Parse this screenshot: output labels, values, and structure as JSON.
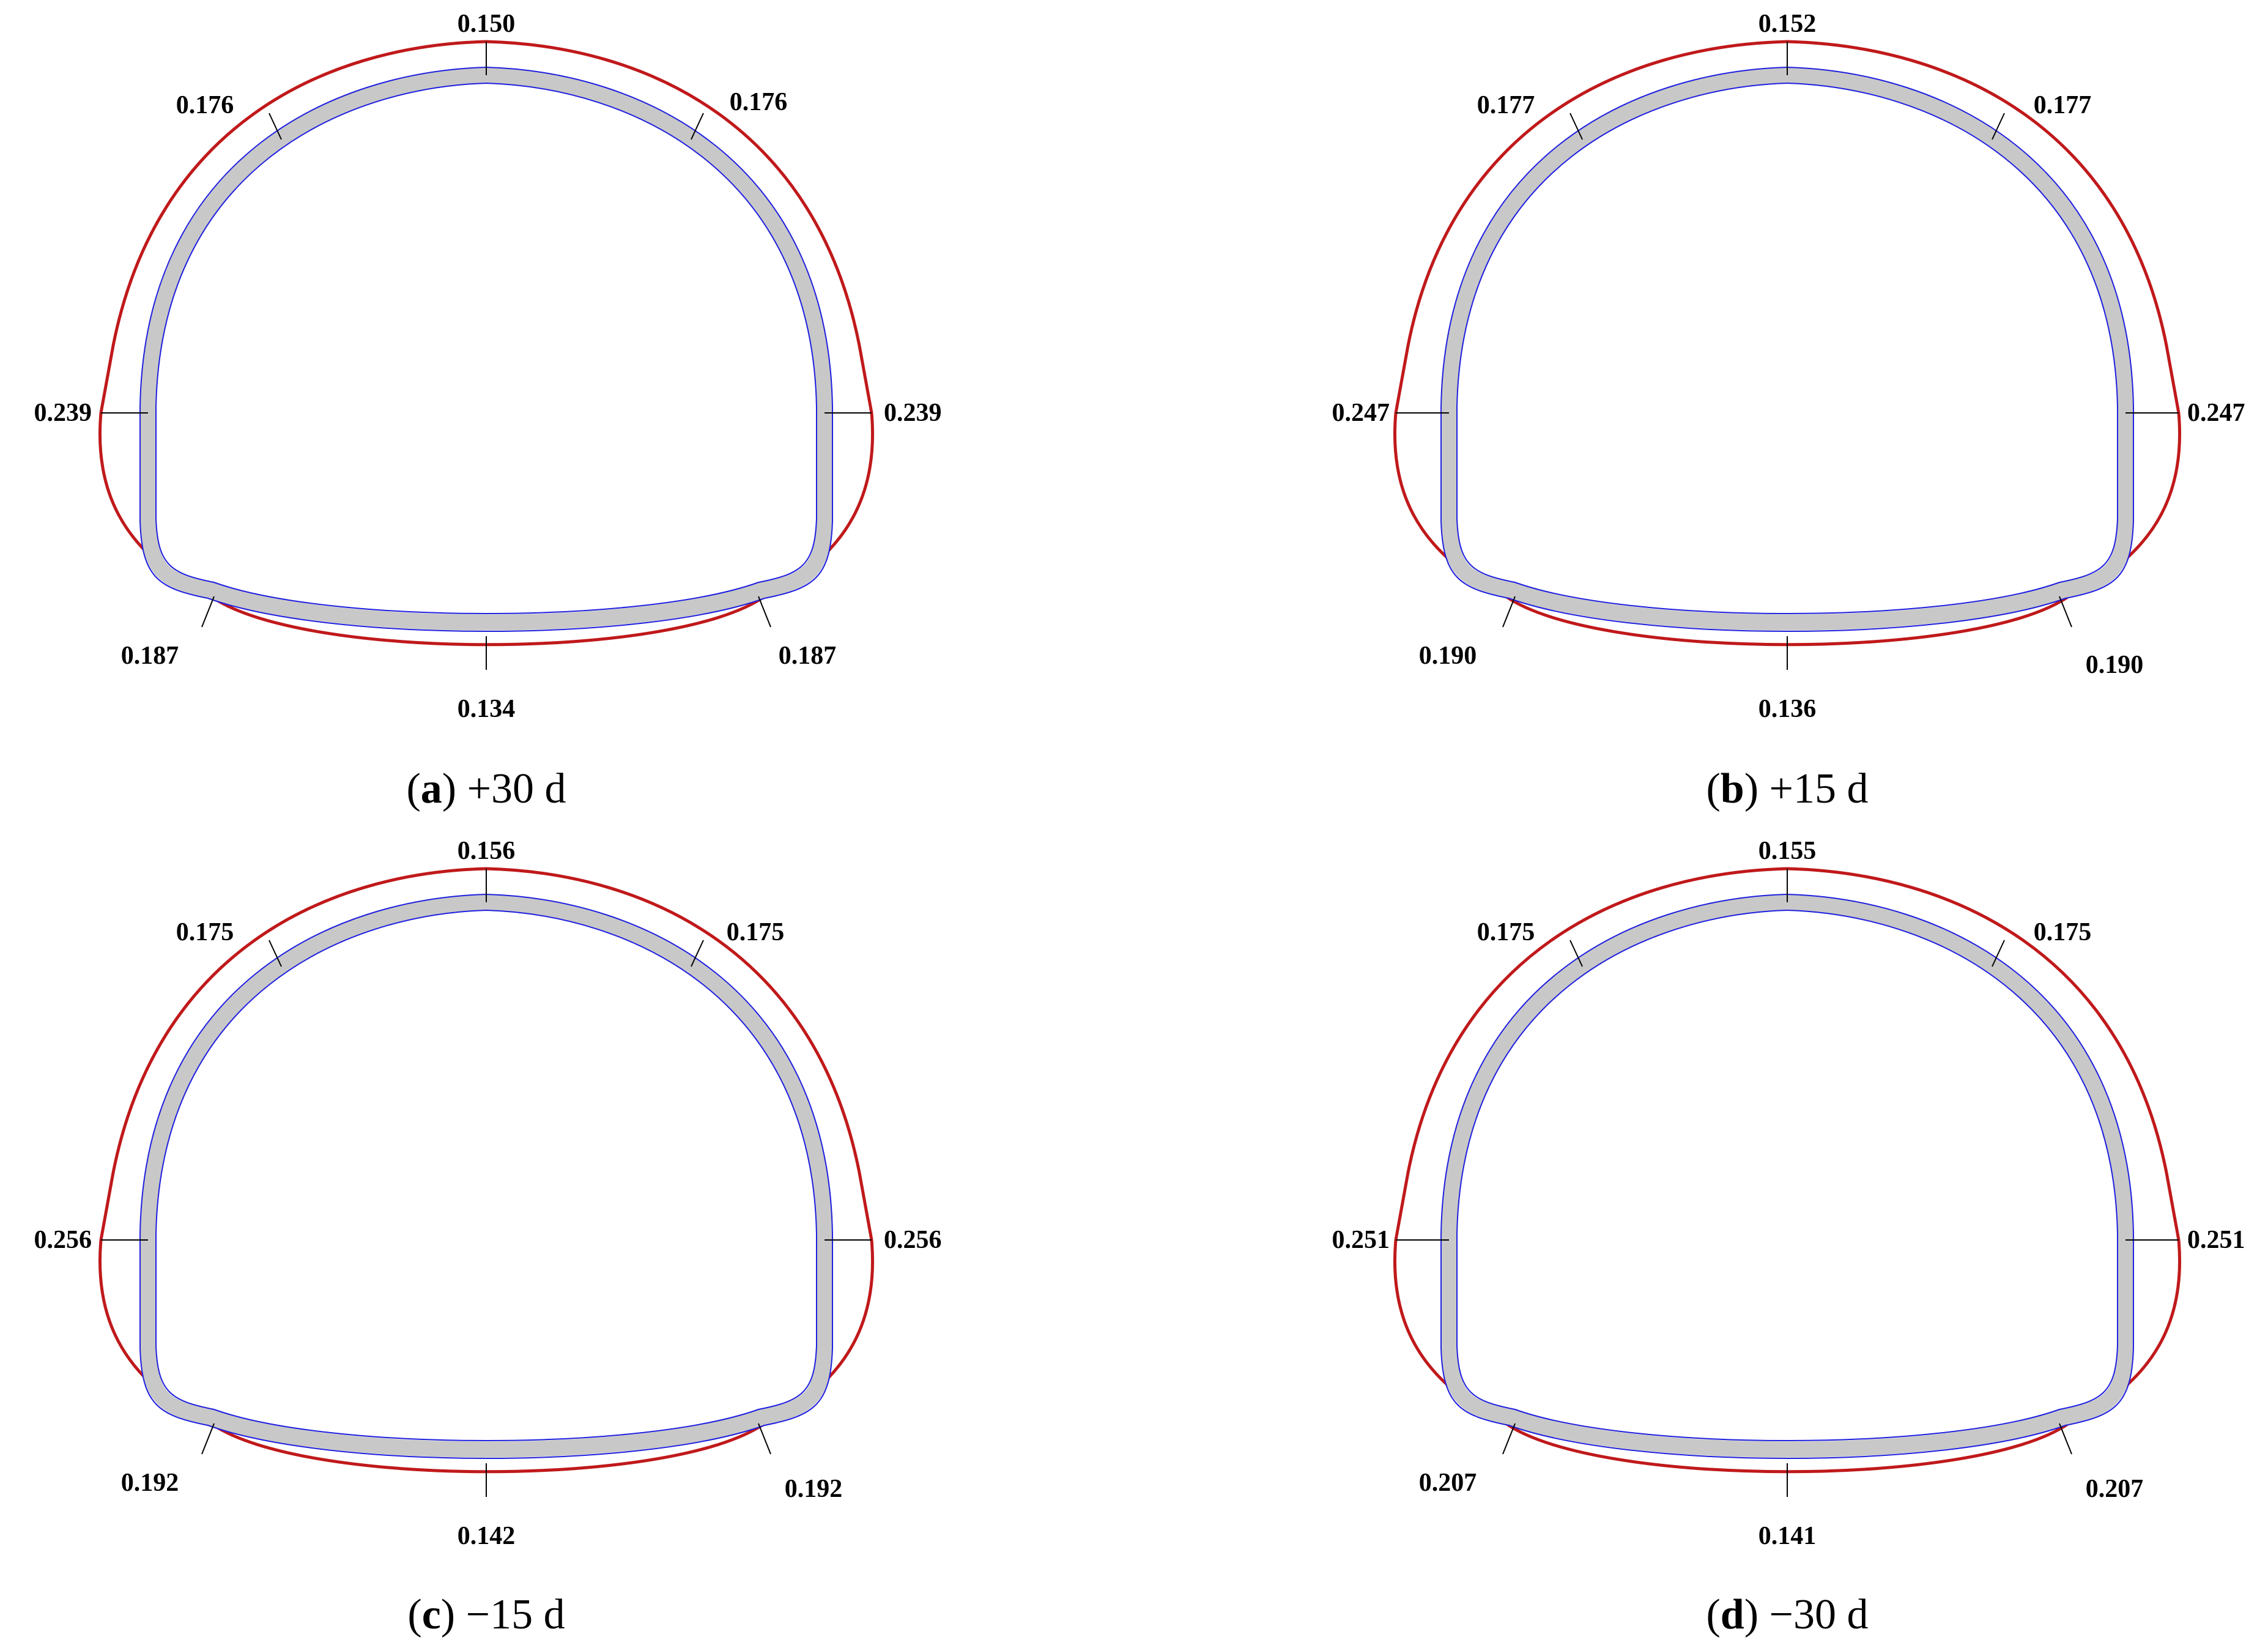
{
  "colors": {
    "outer_profile": "#c0191b",
    "lining_fill": "#c8c8c8",
    "lining_edge": "#1f1fe0",
    "tick": "#000000",
    "text": "#000000"
  },
  "panels": [
    {
      "letter": "a",
      "condition": "+30 d",
      "values": {
        "crown": "0.150",
        "left_shoulder": "0.176",
        "right_shoulder": "0.176",
        "left_springline": "0.239",
        "right_springline": "0.239",
        "left_corner": "0.187",
        "right_corner": "0.187",
        "invert": "0.134"
      }
    },
    {
      "letter": "b",
      "condition": "+15 d",
      "values": {
        "crown": "0.152",
        "left_shoulder": "0.177",
        "right_shoulder": "0.177",
        "left_springline": "0.247",
        "right_springline": "0.247",
        "left_corner": "0.190",
        "right_corner": "0.190",
        "invert": "0.136"
      }
    },
    {
      "letter": "c",
      "condition": "−15 d",
      "values": {
        "crown": "0.156",
        "left_shoulder": "0.175",
        "right_shoulder": "0.175",
        "left_springline": "0.256",
        "right_springline": "0.256",
        "left_corner": "0.192",
        "right_corner": "0.192",
        "invert": "0.142"
      }
    },
    {
      "letter": "d",
      "condition": "−30 d",
      "values": {
        "crown": "0.155",
        "left_shoulder": "0.175",
        "right_shoulder": "0.175",
        "left_springline": "0.251",
        "right_springline": "0.251",
        "left_corner": "0.207",
        "right_corner": "0.207",
        "invert": "0.141"
      }
    }
  ]
}
